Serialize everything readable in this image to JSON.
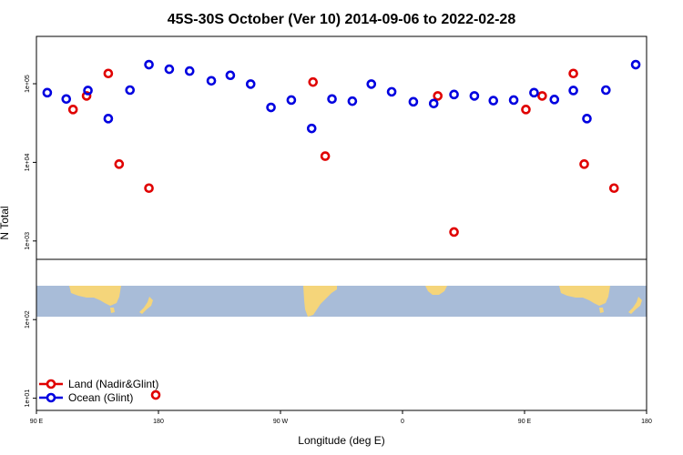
{
  "chart_data": {
    "type": "scatter",
    "title": "45S-30S October (Ver 10)   2014-09-06 to 2022-02-28",
    "xlabel": "Longitude (deg E)",
    "ylabel": "N Total",
    "x_axis": {
      "range": [
        90,
        540
      ],
      "ticks": [
        {
          "value": 90,
          "label": "90 E"
        },
        {
          "value": 180,
          "label": "180"
        },
        {
          "value": 270,
          "label": "90 W"
        },
        {
          "value": 360,
          "label": "0"
        },
        {
          "value": 450,
          "label": "90 E"
        },
        {
          "value": 540,
          "label": "180"
        }
      ]
    },
    "y_axis": {
      "scale": "log10",
      "range": [
        7,
        400000
      ],
      "ticks": [
        {
          "value": 10,
          "label": "1e+01"
        },
        {
          "value": 100,
          "label": "1e+02"
        },
        {
          "value": 1000,
          "label": "1e+03"
        },
        {
          "value": 10000,
          "label": "1e+04"
        },
        {
          "value": 100000,
          "label": "1e+05"
        }
      ]
    },
    "grid": false,
    "legend_position": "bottom-left",
    "map_inset": {
      "description_colors": {
        "ocean": "#a8bcd8",
        "land": "#f5d57a"
      }
    },
    "series": [
      {
        "name": "Land (Nadir&Glint)",
        "color": "#e00000",
        "points": [
          [
            117,
            47000
          ],
          [
            127,
            70000
          ],
          [
            143,
            135000
          ],
          [
            151,
            9500
          ],
          [
            173,
            4700
          ],
          [
            178,
            11
          ],
          [
            294,
            105000
          ],
          [
            303,
            12000
          ],
          [
            386,
            70000
          ],
          [
            398,
            1300
          ],
          [
            451,
            47000
          ],
          [
            463,
            70000
          ],
          [
            486,
            135000
          ],
          [
            494,
            9500
          ],
          [
            516,
            4700
          ]
        ]
      },
      {
        "name": "Ocean (Glint)",
        "color": "#0000e0",
        "points": [
          [
            98,
            77000
          ],
          [
            112,
            64000
          ],
          [
            128,
            82000
          ],
          [
            143,
            36000
          ],
          [
            159,
            83000
          ],
          [
            173,
            175000
          ],
          [
            188,
            153000
          ],
          [
            203,
            145000
          ],
          [
            219,
            109000
          ],
          [
            233,
            128000
          ],
          [
            248,
            99000
          ],
          [
            263,
            50000
          ],
          [
            278,
            62000
          ],
          [
            293,
            27000
          ],
          [
            308,
            64000
          ],
          [
            323,
            60000
          ],
          [
            337,
            99000
          ],
          [
            352,
            79000
          ],
          [
            368,
            59000
          ],
          [
            383,
            56000
          ],
          [
            398,
            73000
          ],
          [
            413,
            70000
          ],
          [
            427,
            61000
          ],
          [
            442,
            62000
          ],
          [
            457,
            77000
          ],
          [
            472,
            63000
          ],
          [
            486,
            82000
          ],
          [
            496,
            36000
          ],
          [
            510,
            83000
          ],
          [
            532,
            175000
          ]
        ]
      }
    ]
  }
}
